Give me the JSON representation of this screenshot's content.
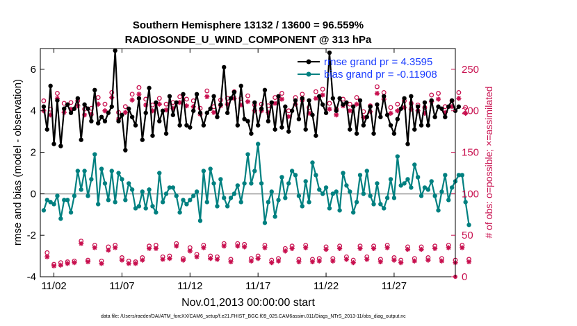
{
  "chart_data": {
    "type": "line",
    "title_line1": "Southern Hemisphere 13132 / 13600 = 96.559%",
    "title_line2": "RADIOSONDE_U_WIND_COMPONENT @ 313 hPa",
    "xlabel": "Nov.01,2013 00:00:00 start",
    "ylabel_left": "rmse and bias (model - observation)",
    "ylabel_right": "# of obs: o=possible; ×=assimilated",
    "footer": "data file: /Users/raeder/DAI/ATM_forcXX/CAM6_setup/f.e21.FHIST_BGC.f09_025.CAM6assim.011/Diags_NTrS_2013-11/obs_diag_output.nc",
    "x_range": [
      0,
      30.5
    ],
    "ylim_left": [
      -4,
      7
    ],
    "ylim_right": [
      0,
      275
    ],
    "xticks": [
      {
        "label": "11/02",
        "value": 1
      },
      {
        "label": "11/07",
        "value": 6
      },
      {
        "label": "11/12",
        "value": 11
      },
      {
        "label": "11/17",
        "value": 16
      },
      {
        "label": "11/22",
        "value": 21
      },
      {
        "label": "11/27",
        "value": 26
      }
    ],
    "yticks_left": [
      {
        "label": "-4",
        "value": -4
      },
      {
        "label": "-2",
        "value": -2
      },
      {
        "label": "0",
        "value": 0
      },
      {
        "label": "2",
        "value": 2
      },
      {
        "label": "4",
        "value": 4
      },
      {
        "label": "6",
        "value": 6
      }
    ],
    "yticks_right": [
      {
        "label": "0",
        "value": 0
      },
      {
        "label": "50",
        "value": 50
      },
      {
        "label": "100",
        "value": 100
      },
      {
        "label": "150",
        "value": 150
      },
      {
        "label": "200",
        "value": 200
      },
      {
        "label": "250",
        "value": 250
      }
    ],
    "colors": {
      "rmse": "#000000",
      "bias": "#008080",
      "obs": "#c8104f",
      "legend_text": "#1a3cff",
      "zero_line": "#b0b0b0"
    },
    "series": [
      {
        "name": "rmse grand pr = 4.3595",
        "key": "rmse",
        "axis": "left",
        "values": [
          4.2,
          3.1,
          5.2,
          2.4,
          4.5,
          2.3,
          4.1,
          4.3,
          3.9,
          4.1,
          4.6,
          2.6,
          4.3,
          4.1,
          3.5,
          5.0,
          3.4,
          3.7,
          3.5,
          3.9,
          4.2,
          6.9,
          3.5,
          3.8,
          2.1,
          4.1,
          3.7,
          3.3,
          4.6,
          2.6,
          3.9,
          5.1,
          2.8,
          4.4,
          3.5,
          4.0,
          2.9,
          4.7,
          3.8,
          4.4,
          3.3,
          4.8,
          3.3,
          3.2,
          4.0,
          4.8,
          3.9,
          3.3,
          3.9,
          4.1,
          4.7,
          3.7,
          4.3,
          6.1,
          3.9,
          4.6,
          4.9,
          3.3,
          5.2,
          3.6,
          3.5,
          2.9,
          4.4,
          3.3,
          4.1,
          5.0,
          3.5,
          4.4,
          3.1,
          4.7,
          3.2,
          4.2,
          3.0,
          4.0,
          4.5,
          3.6,
          4.6,
          3.1,
          4.5,
          3.8,
          2.8,
          4.7,
          4.3,
          3.9,
          6.8,
          4.6,
          4.0,
          4.6,
          4.3,
          4.4,
          3.1,
          4.2,
          2.9,
          4.5,
          3.3,
          3.7,
          4.2,
          2.9,
          4.3,
          3.7,
          4.7,
          3.8,
          3.3,
          2.9,
          3.6,
          4.1,
          4.6,
          2.4,
          4.7,
          3.1,
          4.2,
          3.3,
          4.4,
          3.3,
          4.5,
          3.7,
          4.2,
          4.1,
          3.7,
          4.2,
          4.5,
          4.0,
          4.2
        ],
        "grand": 4.3595
      },
      {
        "name": "bias grand pr = -0.11908",
        "key": "bias",
        "axis": "left",
        "values": [
          -0.8,
          -0.3,
          -0.4,
          -0.5,
          -0.1,
          -1.2,
          -0.3,
          -0.3,
          -0.9,
          -0.1,
          1.1,
          0.2,
          1.1,
          -0.1,
          0.7,
          1.9,
          -0.5,
          1.2,
          0.5,
          -0.3,
          1.1,
          -0.4,
          1.0,
          0.7,
          -0.3,
          0.5,
          0.2,
          -0.7,
          -0.6,
          0.1,
          -0.7,
          0.2,
          -0.6,
          -0.9,
          1.0,
          -0.4,
          0.0,
          0.3,
          0.3,
          -0.1,
          -0.9,
          -0.3,
          -0.5,
          -0.3,
          -0.1,
          0.1,
          -1.3,
          1.1,
          -0.4,
          1.2,
          0.5,
          -0.6,
          0.7,
          -0.2,
          -0.6,
          -0.2,
          0.0,
          0.4,
          -0.4,
          0.5,
          1.9,
          0.5,
          1.1,
          2.4,
          0.5,
          -1.4,
          -0.4,
          0.1,
          -1.1,
          -0.3,
          0.8,
          -0.2,
          0.5,
          1.1,
          0.9,
          -0.1,
          -0.6,
          0.6,
          -0.4,
          1.5,
          0.9,
          0.2,
          0.0,
          0.3,
          -0.7,
          0.0,
          0.1,
          -0.8,
          1.0,
          0.4,
          0.1,
          -0.9,
          -0.4,
          0.9,
          0.0,
          1.1,
          -0.1,
          -0.5,
          0.5,
          -0.5,
          -0.7,
          -0.2,
          0.7,
          -0.2,
          1.8,
          0.4,
          0.5,
          0.7,
          0.3,
          1.4,
          0.8,
          -0.1,
          0.3,
          0.2,
          0.6,
          -0.1,
          -0.8,
          0.1,
          0.9,
          -0.3,
          0.3,
          0.6,
          0.9,
          0.9,
          -0.4,
          -1.5
        ]
      },
      {
        "name": "possible",
        "key": "possible",
        "axis": "right",
        "values": [
          212,
          29,
          202,
          15,
          221,
          17,
          209,
          18,
          210,
          19,
          212,
          43,
          202,
          20,
          203,
          38,
          216,
          19,
          208,
          36,
          222,
          38,
          198,
          23,
          205,
          19,
          220,
          18,
          228,
          23,
          214,
          37,
          207,
          38,
          215,
          24,
          208,
          25,
          210,
          40,
          217,
          22,
          214,
          35,
          212,
          27,
          203,
          38,
          224,
          25,
          205,
          24,
          213,
          40,
          215,
          21,
          223,
          40,
          215,
          39,
          218,
          22,
          207,
          25,
          208,
          38,
          206,
          20,
          216,
          22,
          221,
          34,
          200,
          37,
          216,
          21,
          220,
          38,
          204,
          21,
          223,
          22,
          226,
          36,
          209,
          22,
          202,
          37,
          214,
          24,
          208,
          20,
          216,
          37,
          199,
          24,
          206,
          37,
          229,
          21,
          222,
          38,
          204,
          23,
          208,
          20,
          212,
          36,
          209,
          22,
          207,
          36,
          204,
          23,
          219,
          37,
          221,
          22,
          205,
          38,
          212,
          20,
          222,
          38,
          204,
          21
        ]
      },
      {
        "name": "assimilated",
        "key": "assimilated",
        "axis": "right",
        "values": [
          200,
          24,
          195,
          13,
          215,
          14,
          198,
          16,
          202,
          17,
          206,
          40,
          195,
          18,
          196,
          35,
          208,
          16,
          200,
          32,
          216,
          35,
          190,
          20,
          198,
          16,
          213,
          16,
          220,
          20,
          207,
          34,
          200,
          34,
          208,
          21,
          201,
          22,
          203,
          37,
          210,
          20,
          206,
          31,
          205,
          24,
          196,
          35,
          217,
          22,
          198,
          21,
          206,
          37,
          208,
          18,
          215,
          37,
          207,
          36,
          211,
          19,
          200,
          22,
          200,
          35,
          198,
          17,
          209,
          19,
          214,
          31,
          193,
          34,
          208,
          18,
          213,
          35,
          197,
          18,
          215,
          19,
          219,
          33,
          202,
          19,
          195,
          34,
          206,
          21,
          200,
          17,
          208,
          34,
          192,
          21,
          199,
          34,
          221,
          18,
          214,
          35,
          197,
          20,
          200,
          17,
          204,
          33,
          202,
          19,
          200,
          33,
          197,
          20,
          211,
          34,
          214,
          19,
          198,
          35,
          205,
          17,
          215,
          35,
          197,
          18
        ]
      }
    ]
  }
}
